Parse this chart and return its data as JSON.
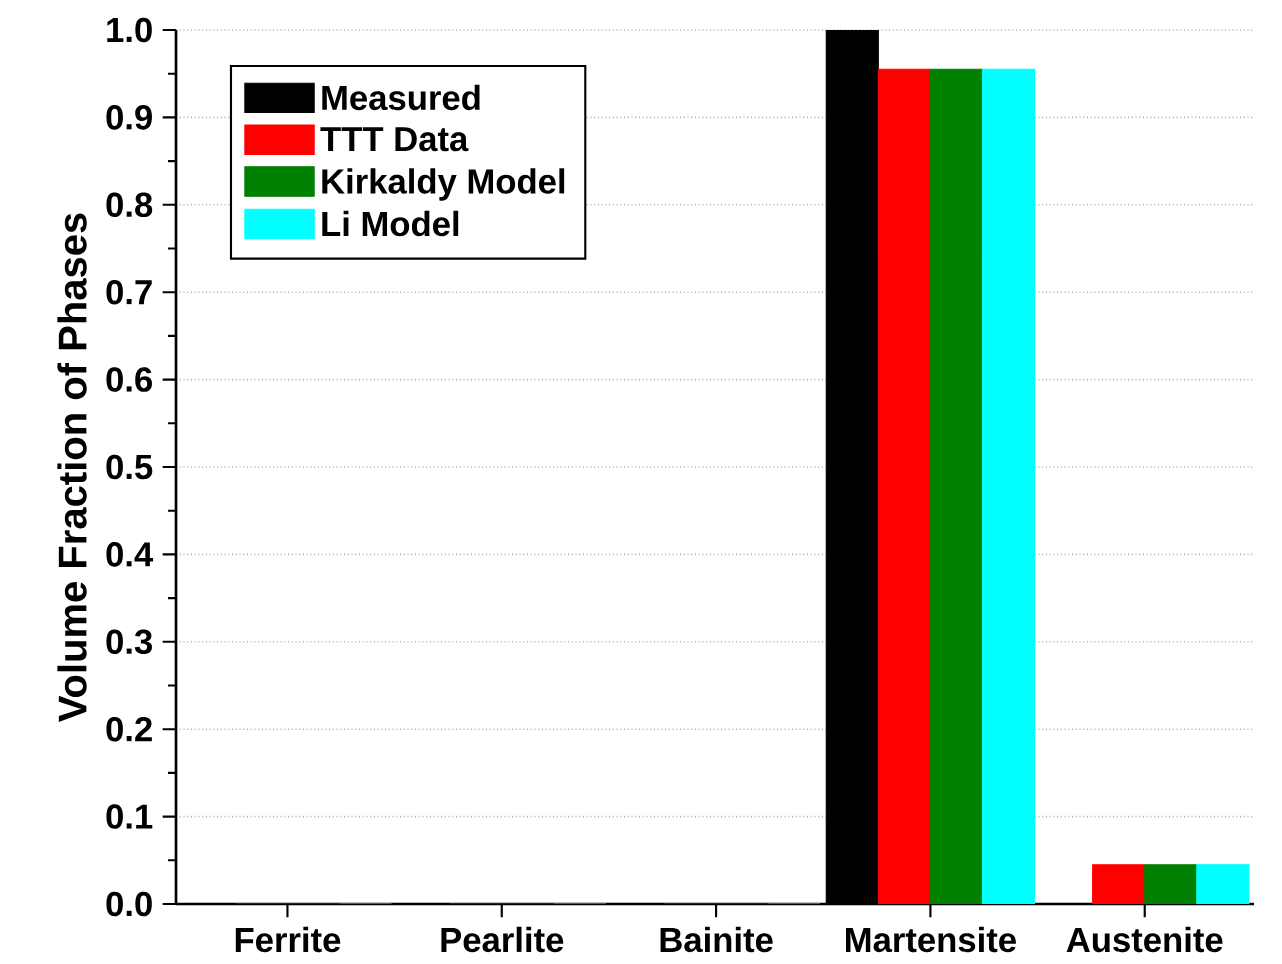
{
  "chart_data": {
    "type": "bar",
    "ylabel": "Volume Fraction of Phases",
    "categories": [
      "Ferrite",
      "Pearlite",
      "Bainite",
      "Martensite",
      "Austenite"
    ],
    "series": [
      {
        "name": "Measured",
        "color": "#000000",
        "values": [
          0,
          0,
          0,
          1.0,
          0
        ]
      },
      {
        "name": "TTT Data",
        "color": "#ff0000",
        "values": [
          0,
          0,
          0,
          0.955,
          0.045
        ]
      },
      {
        "name": "Kirkaldy Model",
        "color": "#008000",
        "values": [
          0,
          0,
          0,
          0.955,
          0.045
        ]
      },
      {
        "name": "Li Model",
        "color": "#00ffff",
        "values": [
          0,
          0,
          0,
          0.955,
          0.045
        ]
      }
    ],
    "ylim": [
      0,
      1.0
    ],
    "yticks": [
      {
        "value": 0,
        "label": "0.0"
      },
      0.1,
      0.2,
      0.3,
      0.4,
      0.5,
      0.6,
      0.7,
      0.8,
      0.9,
      {
        "value": 1,
        "label": "1.0"
      }
    ],
    "grid": "y",
    "legend": "top left"
  }
}
